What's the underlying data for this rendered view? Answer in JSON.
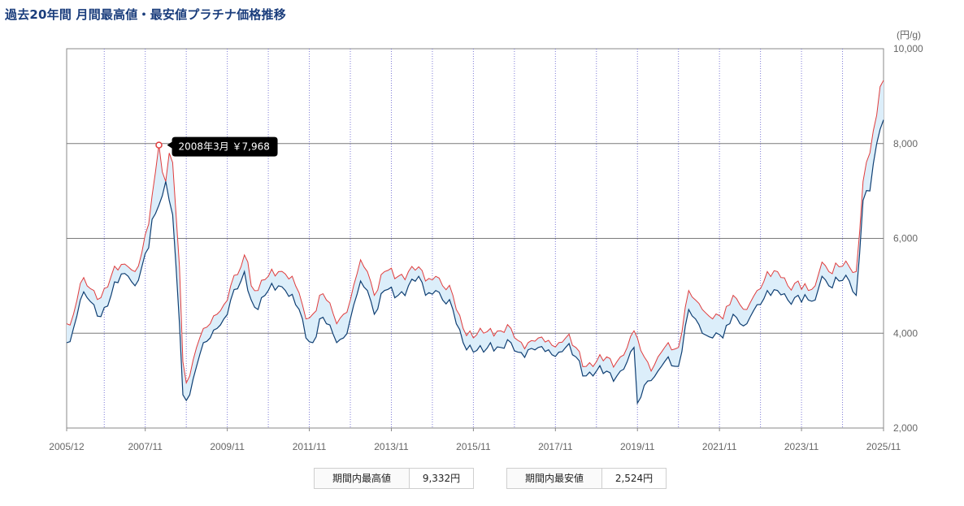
{
  "title": "過去20年間 月間最高値・最安値プラチナ価格推移",
  "unit_label": "(円/g)",
  "tooltip": {
    "text": "2008年3月 ￥7,968"
  },
  "summary": {
    "max_label": "期間内最高値",
    "max_value": "9,332円",
    "min_label": "期間内最安値",
    "min_value": "2,524円"
  },
  "colors": {
    "high": "#e03c3c",
    "low": "#0f3f73",
    "band": "#dceefa",
    "title": "#1a3d7c"
  },
  "chart_data": {
    "type": "area",
    "x_range": [
      "2005-12",
      "2025-11"
    ],
    "ylim": [
      2000,
      10000
    ],
    "y_ticks": [
      {
        "value": 2000,
        "label": "2,000"
      },
      {
        "value": 4000,
        "label": "4,000"
      },
      {
        "value": 6000,
        "label": "6,000"
      },
      {
        "value": 8000,
        "label": "8,000"
      },
      {
        "value": 10000,
        "label": "10,000"
      }
    ],
    "x_ticks": [
      "2005/12",
      "2007/11",
      "2009/11",
      "2011/11",
      "2013/11",
      "2015/11",
      "2017/11",
      "2019/11",
      "2021/11",
      "2023/11",
      "2025/11"
    ],
    "grid": true,
    "series": [
      {
        "key": "high",
        "anchors": [
          [
            "2005-12",
            4200
          ],
          [
            "2006-02",
            4400
          ],
          [
            "2006-04",
            5050
          ],
          [
            "2006-06",
            5000
          ],
          [
            "2006-08",
            4900
          ],
          [
            "2006-10",
            4750
          ],
          [
            "2007-01",
            5200
          ],
          [
            "2007-04",
            5450
          ],
          [
            "2007-06",
            5400
          ],
          [
            "2007-08",
            5300
          ],
          [
            "2007-10",
            5700
          ],
          [
            "2007-12",
            6300
          ],
          [
            "2008-01",
            6900
          ],
          [
            "2008-03",
            7968
          ],
          [
            "2008-04",
            7400
          ],
          [
            "2008-05",
            7200
          ],
          [
            "2008-06",
            7800
          ],
          [
            "2008-07",
            7600
          ],
          [
            "2008-08",
            6500
          ],
          [
            "2008-09",
            5400
          ],
          [
            "2008-10",
            3400
          ],
          [
            "2008-11",
            2950
          ],
          [
            "2008-12",
            3100
          ],
          [
            "2009-02",
            3700
          ],
          [
            "2009-04",
            4100
          ],
          [
            "2009-06",
            4200
          ],
          [
            "2009-08",
            4400
          ],
          [
            "2009-10",
            4600
          ],
          [
            "2009-12",
            5000
          ],
          [
            "2010-03",
            5400
          ],
          [
            "2010-04",
            5650
          ],
          [
            "2010-05",
            5500
          ],
          [
            "2010-06",
            5000
          ],
          [
            "2010-08",
            4900
          ],
          [
            "2010-11",
            5200
          ],
          [
            "2011-02",
            5300
          ],
          [
            "2011-04",
            5250
          ],
          [
            "2011-07",
            5000
          ],
          [
            "2011-09",
            4600
          ],
          [
            "2011-10",
            4300
          ],
          [
            "2011-12",
            4400
          ],
          [
            "2012-02",
            4800
          ],
          [
            "2012-04",
            4700
          ],
          [
            "2012-07",
            4200
          ],
          [
            "2012-09",
            4400
          ],
          [
            "2012-11",
            4700
          ],
          [
            "2013-02",
            5550
          ],
          [
            "2013-04",
            5300
          ],
          [
            "2013-06",
            4800
          ],
          [
            "2013-09",
            5300
          ],
          [
            "2014-01",
            5200
          ],
          [
            "2014-04",
            5300
          ],
          [
            "2014-07",
            5400
          ],
          [
            "2014-09",
            5100
          ],
          [
            "2014-12",
            5200
          ],
          [
            "2015-02",
            5000
          ],
          [
            "2015-05",
            4800
          ],
          [
            "2015-08",
            4100
          ],
          [
            "2015-11",
            3900
          ],
          [
            "2016-02",
            4000
          ],
          [
            "2016-04",
            4100
          ],
          [
            "2016-07",
            4050
          ],
          [
            "2016-10",
            4100
          ],
          [
            "2016-12",
            3850
          ],
          [
            "2017-03",
            3800
          ],
          [
            "2017-06",
            3900
          ],
          [
            "2017-09",
            3850
          ],
          [
            "2017-12",
            3800
          ],
          [
            "2018-02",
            3900
          ],
          [
            "2018-05",
            3700
          ],
          [
            "2018-08",
            3300
          ],
          [
            "2018-11",
            3400
          ],
          [
            "2019-02",
            3500
          ],
          [
            "2019-05",
            3400
          ],
          [
            "2019-08",
            3700
          ],
          [
            "2019-10",
            4050
          ],
          [
            "2019-11",
            3900
          ],
          [
            "2020-01",
            3500
          ],
          [
            "2020-03",
            3200
          ],
          [
            "2020-05",
            3500
          ],
          [
            "2020-08",
            3800
          ],
          [
            "2020-11",
            3700
          ],
          [
            "2021-02",
            4900
          ],
          [
            "2021-04",
            4700
          ],
          [
            "2021-06",
            4500
          ],
          [
            "2021-09",
            4300
          ],
          [
            "2021-12",
            4300
          ],
          [
            "2022-03",
            4800
          ],
          [
            "2022-05",
            4600
          ],
          [
            "2022-07",
            4500
          ],
          [
            "2022-10",
            4900
          ],
          [
            "2023-01",
            5300
          ],
          [
            "2023-04",
            5300
          ],
          [
            "2023-07",
            5000
          ],
          [
            "2023-10",
            5100
          ],
          [
            "2024-01",
            4900
          ],
          [
            "2024-03",
            5000
          ],
          [
            "2024-05",
            5500
          ],
          [
            "2024-07",
            5300
          ],
          [
            "2024-10",
            5400
          ],
          [
            "2025-01",
            5400
          ],
          [
            "2025-03",
            5300
          ],
          [
            "2025-05",
            7200
          ],
          [
            "2025-07",
            7800
          ],
          [
            "2025-09",
            8600
          ],
          [
            "2025-10",
            9200
          ],
          [
            "2025-11",
            9332
          ]
        ]
      },
      {
        "key": "low",
        "anchors": [
          [
            "2005-12",
            3800
          ],
          [
            "2006-02",
            4100
          ],
          [
            "2006-04",
            4700
          ],
          [
            "2006-06",
            4750
          ],
          [
            "2006-08",
            4600
          ],
          [
            "2006-10",
            4350
          ],
          [
            "2007-01",
            4800
          ],
          [
            "2007-04",
            5250
          ],
          [
            "2007-06",
            5200
          ],
          [
            "2007-08",
            5000
          ],
          [
            "2007-10",
            5400
          ],
          [
            "2007-12",
            5800
          ],
          [
            "2008-01",
            6400
          ],
          [
            "2008-03",
            6700
          ],
          [
            "2008-04",
            6900
          ],
          [
            "2008-05",
            7200
          ],
          [
            "2008-06",
            6800
          ],
          [
            "2008-07",
            6500
          ],
          [
            "2008-08",
            5400
          ],
          [
            "2008-09",
            4200
          ],
          [
            "2008-10",
            2700
          ],
          [
            "2008-11",
            2580
          ],
          [
            "2008-12",
            2700
          ],
          [
            "2009-02",
            3300
          ],
          [
            "2009-04",
            3800
          ],
          [
            "2009-06",
            3900
          ],
          [
            "2009-08",
            4100
          ],
          [
            "2009-10",
            4300
          ],
          [
            "2009-12",
            4700
          ],
          [
            "2010-03",
            5100
          ],
          [
            "2010-04",
            5300
          ],
          [
            "2010-05",
            4900
          ],
          [
            "2010-06",
            4700
          ],
          [
            "2010-08",
            4500
          ],
          [
            "2010-11",
            4900
          ],
          [
            "2011-02",
            5000
          ],
          [
            "2011-04",
            4900
          ],
          [
            "2011-07",
            4600
          ],
          [
            "2011-09",
            4300
          ],
          [
            "2011-10",
            3900
          ],
          [
            "2011-12",
            3800
          ],
          [
            "2012-02",
            4300
          ],
          [
            "2012-04",
            4200
          ],
          [
            "2012-07",
            3800
          ],
          [
            "2012-09",
            3900
          ],
          [
            "2012-11",
            4300
          ],
          [
            "2013-02",
            5100
          ],
          [
            "2013-04",
            4900
          ],
          [
            "2013-06",
            4400
          ],
          [
            "2013-09",
            4900
          ],
          [
            "2014-01",
            4800
          ],
          [
            "2014-04",
            5000
          ],
          [
            "2014-07",
            5200
          ],
          [
            "2014-09",
            4800
          ],
          [
            "2014-12",
            4900
          ],
          [
            "2015-02",
            4700
          ],
          [
            "2015-05",
            4500
          ],
          [
            "2015-08",
            3800
          ],
          [
            "2015-11",
            3600
          ],
          [
            "2016-02",
            3600
          ],
          [
            "2016-04",
            3800
          ],
          [
            "2016-07",
            3700
          ],
          [
            "2016-10",
            3800
          ],
          [
            "2016-12",
            3600
          ],
          [
            "2017-03",
            3650
          ],
          [
            "2017-06",
            3700
          ],
          [
            "2017-09",
            3650
          ],
          [
            "2017-12",
            3600
          ],
          [
            "2018-02",
            3700
          ],
          [
            "2018-05",
            3500
          ],
          [
            "2018-08",
            3100
          ],
          [
            "2018-11",
            3200
          ],
          [
            "2019-02",
            3200
          ],
          [
            "2019-05",
            3100
          ],
          [
            "2019-08",
            3400
          ],
          [
            "2019-10",
            3700
          ],
          [
            "2019-11",
            2524
          ],
          [
            "2020-01",
            2900
          ],
          [
            "2020-03",
            3000
          ],
          [
            "2020-05",
            3200
          ],
          [
            "2020-08",
            3500
          ],
          [
            "2020-11",
            3300
          ],
          [
            "2021-02",
            4500
          ],
          [
            "2021-04",
            4300
          ],
          [
            "2021-06",
            4000
          ],
          [
            "2021-09",
            3900
          ],
          [
            "2021-12",
            3900
          ],
          [
            "2022-03",
            4400
          ],
          [
            "2022-05",
            4200
          ],
          [
            "2022-07",
            4200
          ],
          [
            "2022-10",
            4600
          ],
          [
            "2023-01",
            4900
          ],
          [
            "2023-04",
            4900
          ],
          [
            "2023-07",
            4700
          ],
          [
            "2023-10",
            4800
          ],
          [
            "2024-01",
            4700
          ],
          [
            "2024-03",
            4700
          ],
          [
            "2024-05",
            5200
          ],
          [
            "2024-07",
            5000
          ],
          [
            "2024-10",
            5100
          ],
          [
            "2025-01",
            5100
          ],
          [
            "2025-03",
            4800
          ],
          [
            "2025-05",
            6800
          ],
          [
            "2025-07",
            7000
          ],
          [
            "2025-09",
            8000
          ],
          [
            "2025-10",
            8300
          ],
          [
            "2025-11",
            8500
          ]
        ]
      }
    ],
    "highlight_point": {
      "x": "2008-03",
      "y": 7968
    },
    "extremes": {
      "max": 9332,
      "min": 2524
    }
  }
}
